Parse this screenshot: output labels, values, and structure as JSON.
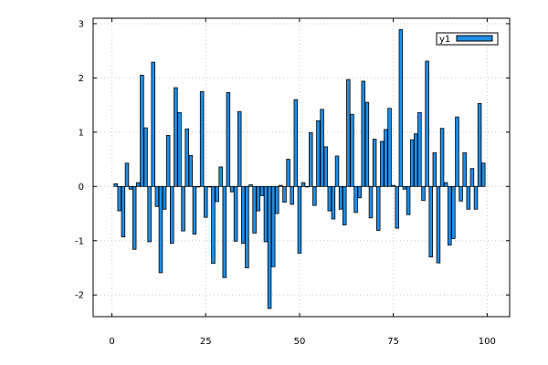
{
  "chart_data": {
    "type": "bar",
    "x": [
      1,
      2,
      3,
      4,
      5,
      6,
      7,
      8,
      9,
      10,
      11,
      12,
      13,
      14,
      15,
      16,
      17,
      18,
      19,
      20,
      21,
      22,
      23,
      24,
      25,
      26,
      27,
      28,
      29,
      30,
      31,
      32,
      33,
      34,
      35,
      36,
      37,
      38,
      39,
      40,
      41,
      42,
      43,
      44,
      45,
      46,
      47,
      48,
      49,
      50,
      51,
      52,
      53,
      54,
      55,
      56,
      57,
      58,
      59,
      60,
      61,
      62,
      63,
      64,
      65,
      66,
      67,
      68,
      69,
      70,
      71,
      72,
      73,
      74,
      75,
      76,
      77,
      78,
      79,
      80,
      81,
      82,
      83,
      84,
      85,
      86,
      87,
      88,
      89,
      90,
      91,
      92,
      93,
      94,
      95,
      96,
      97,
      98,
      99
    ],
    "series": [
      {
        "name": "y1",
        "color": "#1f8ee8",
        "values": [
          0.05,
          -0.45,
          -0.93,
          0.43,
          -0.05,
          -1.16,
          0.07,
          2.05,
          1.08,
          -1.02,
          2.29,
          -0.37,
          -1.59,
          -0.42,
          0.94,
          -1.05,
          1.82,
          1.36,
          -0.82,
          1.06,
          0.57,
          -0.88,
          0.0,
          1.75,
          -0.57,
          0.0,
          -1.42,
          -0.28,
          0.36,
          -1.68,
          1.73,
          -0.1,
          -1.01,
          1.38,
          -1.05,
          -1.5,
          0.03,
          -0.86,
          -0.45,
          -0.17,
          -1.02,
          -2.25,
          -1.48,
          -0.5,
          0.02,
          -0.29,
          0.5,
          -0.33,
          1.6,
          -1.23,
          0.07,
          0.0,
          0.99,
          -0.35,
          1.21,
          1.42,
          0.73,
          -0.45,
          -0.6,
          0.56,
          -0.42,
          -0.71,
          1.97,
          1.33,
          -0.48,
          -0.21,
          1.94,
          1.55,
          -0.58,
          0.87,
          -0.81,
          0.83,
          1.05,
          1.44,
          0.02,
          -0.77,
          2.89,
          -0.05,
          -0.52,
          0.86,
          0.97,
          1.36,
          -0.26,
          2.31,
          -1.3,
          0.62,
          -1.41,
          1.07,
          0.07,
          -1.08,
          -0.96,
          1.28,
          -0.27,
          0.62,
          -0.42,
          0.33,
          -0.42,
          1.53,
          0.43
        ]
      }
    ],
    "xlim": [
      -5,
      106
    ],
    "ylim": [
      -2.4,
      3.1
    ],
    "xticks": [
      0,
      25,
      50,
      75,
      100
    ],
    "yticks": [
      -2,
      -1,
      0,
      1,
      2,
      3
    ],
    "xtick_labels": [
      "0",
      "25",
      "50",
      "75",
      "100"
    ],
    "ytick_labels": [
      "-2",
      "-1",
      "0",
      "1",
      "2",
      "3"
    ],
    "title": "",
    "xlabel": "",
    "ylabel": "",
    "grid": true,
    "legend": "top-right"
  }
}
